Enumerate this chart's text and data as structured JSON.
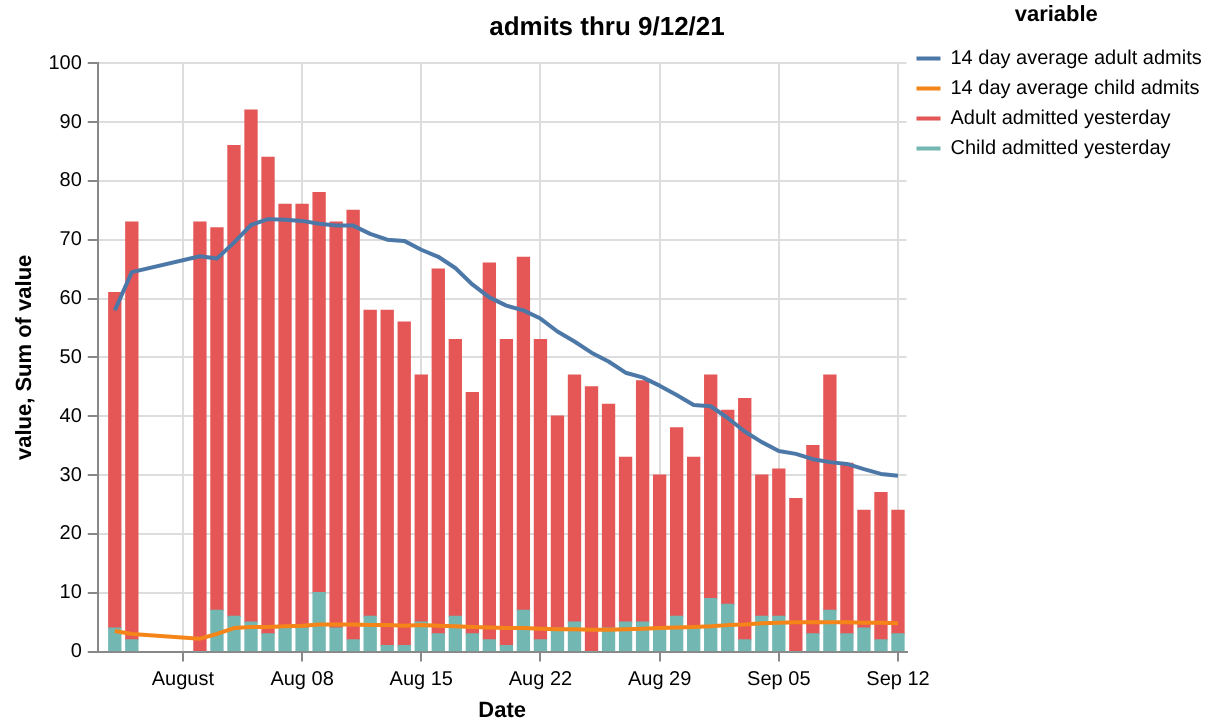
{
  "chart_data": {
    "type": "bar",
    "title": "admits thru 9/12/21",
    "xlabel": "Date",
    "ylabel": "value, Sum of value",
    "legend_title": "variable",
    "x": [
      "--07-28",
      "--07-29",
      "--08-02",
      "--08-03",
      "--08-04",
      "--08-05",
      "--08-06",
      "--08-07",
      "--08-08",
      "--08-09",
      "--08-10",
      "--08-11",
      "--08-12",
      "--08-13",
      "--08-14",
      "--08-15",
      "--08-16",
      "--08-17",
      "--08-18",
      "--08-19",
      "--08-20",
      "--08-21",
      "--08-22",
      "--08-23",
      "--08-24",
      "--08-25",
      "--08-26",
      "--08-27",
      "--08-28",
      "--08-29",
      "--08-30",
      "--08-31",
      "--09-01",
      "--09-02",
      "--09-03",
      "--09-04",
      "--09-05",
      "--09-06",
      "--09-07",
      "--09-08",
      "--09-09",
      "--09-10",
      "--09-11",
      "--09-12"
    ],
    "stacked": true,
    "series": [
      {
        "name": "14 day average adult admits",
        "type": "line",
        "color": "#4c78a8",
        "values": [
          58,
          64.5,
          67.2,
          66.8,
          69.5,
          72.5,
          73.5,
          73.4,
          73.2,
          72.7,
          72.4,
          72.4,
          71,
          70,
          69.8,
          68.3,
          67.1,
          65.2,
          62.4,
          60.2,
          58.8,
          58,
          56.6,
          54.4,
          52.7,
          50.8,
          49.3,
          47.4,
          46.6,
          45.2,
          43.6,
          41.9,
          41.7,
          39.7,
          37.4,
          35.6,
          34.1,
          33.6,
          32.7,
          32.2,
          31.9,
          31,
          30.2,
          29.9
        ]
      },
      {
        "name": "14 day average child admits",
        "type": "line",
        "color": "#f58518",
        "values": [
          3.5,
          3,
          2.2,
          3,
          4,
          4.2,
          4.2,
          4.3,
          4.4,
          4.6,
          4.6,
          4.6,
          4.5,
          4.5,
          4.4,
          4.5,
          4.4,
          4.3,
          4.2,
          4.1,
          4,
          4,
          3.9,
          3.8,
          3.8,
          3.7,
          3.7,
          3.8,
          3.9,
          4,
          4.1,
          4.2,
          4.3,
          4.5,
          4.6,
          4.8,
          4.9,
          5,
          5,
          5,
          5,
          4.9,
          4.9,
          4.8
        ]
      },
      {
        "name": "Child admitted yesterday",
        "color": "#72b7b2",
        "values": [
          4,
          2,
          0,
          7,
          6,
          5,
          3,
          4,
          4,
          10,
          4,
          2,
          6,
          1,
          1,
          5,
          3,
          6,
          3,
          2,
          1,
          7,
          2,
          4,
          5,
          0,
          4,
          5,
          5,
          4,
          6,
          4,
          9,
          8,
          2,
          6,
          6,
          0,
          3,
          7,
          3,
          4,
          2,
          3
        ]
      },
      {
        "name": "Adult admitted yesterday",
        "color": "#e45756",
        "values": [
          57,
          71,
          73,
          65,
          80,
          87,
          81,
          72,
          72,
          68,
          69,
          73,
          52,
          57,
          55,
          42,
          62,
          47,
          41,
          64,
          52,
          60,
          51,
          36,
          42,
          45,
          38,
          28,
          41,
          26,
          32,
          29,
          38,
          33,
          41,
          24,
          25,
          26,
          32,
          40,
          29,
          20,
          25,
          21
        ]
      }
    ],
    "xlim": [
      "--07-27",
      "--09-12T12:00"
    ],
    "xticks": [
      {
        "value": "--08-01",
        "label": "August"
      },
      {
        "value": "--08-08",
        "label": "Aug 08"
      },
      {
        "value": "--08-15",
        "label": "Aug 15"
      },
      {
        "value": "--08-22",
        "label": "Aug 22"
      },
      {
        "value": "--08-29",
        "label": "Aug 29"
      },
      {
        "value": "--09-05",
        "label": "Sep 05"
      },
      {
        "value": "--09-12",
        "label": "Sep 12"
      }
    ],
    "ylim": [
      0,
      100
    ],
    "yticks": [
      0,
      10,
      20,
      30,
      40,
      50,
      60,
      70,
      80,
      90,
      100
    ],
    "grid": true,
    "legend": "right",
    "marker": "none"
  }
}
